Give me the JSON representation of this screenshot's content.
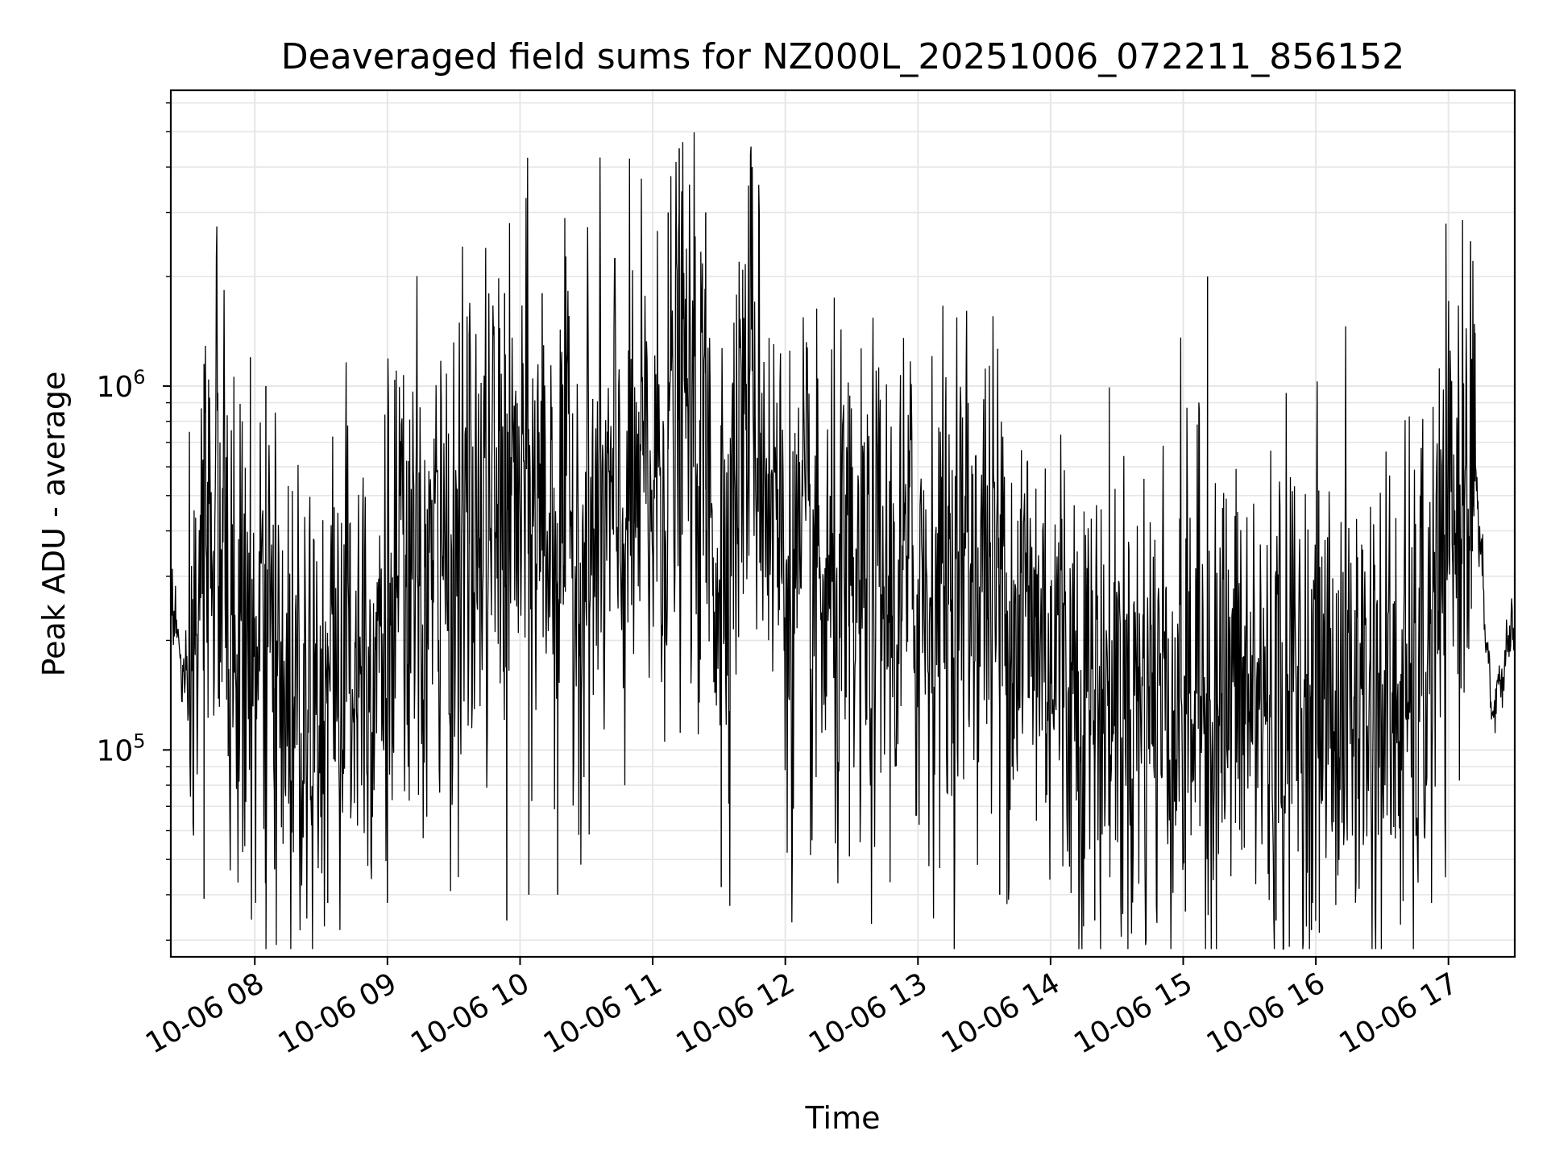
{
  "chart_data": {
    "type": "line",
    "title": "Deaveraged field sums for NZ000L_20251006_072211_856152",
    "xlabel": "Time",
    "ylabel": "Peak ADU - average",
    "yscale": "log",
    "ylim": [
      27000,
      6500000
    ],
    "xlim": [
      "2025-10-06 07:22",
      "2025-10-06 17:30"
    ],
    "xticks": [
      "10-06 08",
      "10-06 09",
      "10-06 10",
      "10-06 11",
      "10-06 12",
      "10-06 13",
      "10-06 14",
      "10-06 15",
      "10-06 16",
      "10-06 17"
    ],
    "xtick_times": [
      "2025-10-06 08:00",
      "2025-10-06 09:00",
      "2025-10-06 10:00",
      "2025-10-06 11:00",
      "2025-10-06 12:00",
      "2025-10-06 13:00",
      "2025-10-06 14:00",
      "2025-10-06 15:00",
      "2025-10-06 16:00",
      "2025-10-06 17:00"
    ],
    "yticks": [
      {
        "base": "10",
        "exp": "5",
        "value": 100000
      },
      {
        "base": "10",
        "exp": "6",
        "value": 1000000
      }
    ],
    "grid": true,
    "line_color": "#000000",
    "series": [
      {
        "x": [
          "2025-10-06 07:22",
          "2025-10-06 07:30",
          "2025-10-06 07:40",
          "2025-10-06 07:50",
          "2025-10-06 08:00",
          "2025-10-06 08:15",
          "2025-10-06 08:30",
          "2025-10-06 08:45",
          "2025-10-06 09:00",
          "2025-10-06 09:15",
          "2025-10-06 09:30",
          "2025-10-06 09:45",
          "2025-10-06 10:00",
          "2025-10-06 10:15",
          "2025-10-06 10:30",
          "2025-10-06 10:45",
          "2025-10-06 11:00",
          "2025-10-06 11:15",
          "2025-10-06 11:30",
          "2025-10-06 11:45",
          "2025-10-06 12:00",
          "2025-10-06 12:15",
          "2025-10-06 12:30",
          "2025-10-06 12:45",
          "2025-10-06 13:00",
          "2025-10-06 13:15",
          "2025-10-06 13:30",
          "2025-10-06 13:45",
          "2025-10-06 14:00",
          "2025-10-06 14:15",
          "2025-10-06 14:30",
          "2025-10-06 14:45",
          "2025-10-06 15:00",
          "2025-10-06 15:15",
          "2025-10-06 15:30",
          "2025-10-06 15:45",
          "2025-10-06 16:00",
          "2025-10-06 16:15",
          "2025-10-06 16:30",
          "2025-10-06 16:45",
          "2025-10-06 17:00",
          "2025-10-06 17:10",
          "2025-10-06 17:20",
          "2025-10-06 17:30"
        ],
        "y": [
          280000,
          120000,
          550000,
          200000,
          160000,
          140000,
          170000,
          200000,
          230000,
          260000,
          330000,
          420000,
          480000,
          430000,
          360000,
          420000,
          520000,
          900000,
          360000,
          1100000,
          300000,
          240000,
          220000,
          250000,
          280000,
          300000,
          330000,
          240000,
          200000,
          150000,
          140000,
          145000,
          150000,
          140000,
          135000,
          140000,
          145000,
          140000,
          130000,
          125000,
          320000,
          800000,
          120000,
          240000
        ],
        "peaks": [
          {
            "x": "2025-10-06 07:37",
            "y": 1150000
          },
          {
            "x": "2025-10-06 07:37",
            "y": 39000
          },
          {
            "x": "2025-10-06 07:58",
            "y": 1200000
          },
          {
            "x": "2025-10-06 08:05",
            "y": 1000000
          },
          {
            "x": "2025-10-06 08:09",
            "y": 47000
          },
          {
            "x": "2025-10-06 08:33",
            "y": 38000
          },
          {
            "x": "2025-10-06 09:00",
            "y": 38000
          },
          {
            "x": "2025-10-06 09:37",
            "y": 1400000
          },
          {
            "x": "2025-10-06 09:53",
            "y": 1800000
          },
          {
            "x": "2025-10-06 09:54",
            "y": 34000
          },
          {
            "x": "2025-10-06 10:04",
            "y": 40000
          },
          {
            "x": "2025-10-06 10:10",
            "y": 1800000
          },
          {
            "x": "2025-10-06 10:17",
            "y": 40000
          },
          {
            "x": "2025-10-06 11:07",
            "y": 3000000
          },
          {
            "x": "2025-10-06 11:12",
            "y": 4500000
          },
          {
            "x": "2025-10-06 11:24",
            "y": 3000000
          },
          {
            "x": "2025-10-06 11:31",
            "y": 42000
          },
          {
            "x": "2025-10-06 11:45",
            "y": 4000000
          },
          {
            "x": "2025-10-06 12:29",
            "y": 51000
          },
          {
            "x": "2025-10-06 13:37",
            "y": 40000
          },
          {
            "x": "2025-10-06 14:20",
            "y": 34000
          },
          {
            "x": "2025-10-06 15:01",
            "y": 36000
          },
          {
            "x": "2025-10-06 15:11",
            "y": 2000000
          },
          {
            "x": "2025-10-06 15:42",
            "y": 34000
          },
          {
            "x": "2025-10-06 15:58",
            "y": 32000
          },
          {
            "x": "2025-10-06 17:10",
            "y": 2500000
          },
          {
            "x": "2025-10-06 17:12",
            "y": 1400000
          }
        ]
      }
    ]
  }
}
